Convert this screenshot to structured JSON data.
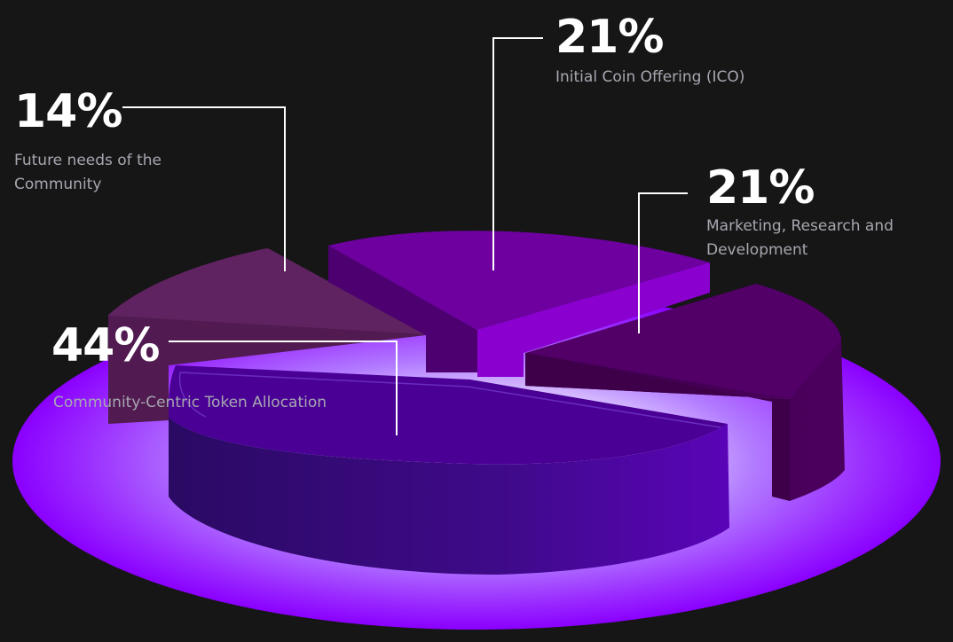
{
  "chart_data": {
    "type": "pie",
    "title": "",
    "slices": [
      {
        "value": 21,
        "value_label": "21%",
        "label": "Initial Coin Offering (ICO)",
        "color": "#7a00b8"
      },
      {
        "value": 21,
        "value_label": "21%",
        "label": "Marketing, Research and\nDevelopment",
        "color": "#4a005f"
      },
      {
        "value": 44,
        "value_label": "44%",
        "label": "Community-Centric Token Allocation",
        "color": "#4b0096"
      },
      {
        "value": 14,
        "value_label": "14%",
        "label": "Future needs of the\nCommunity",
        "color": "#5b1f5a"
      }
    ],
    "base_color": "#8a00ff"
  }
}
